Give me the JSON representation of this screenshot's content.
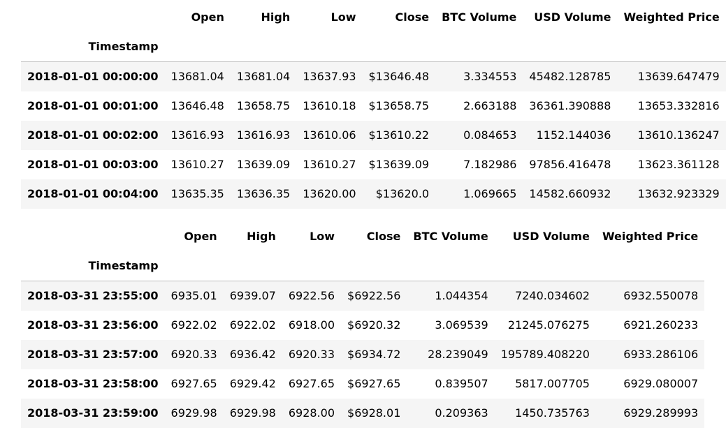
{
  "tables": [
    {
      "columns": [
        "Open",
        "High",
        "Low",
        "Close",
        "BTC Volume",
        "USD Volume",
        "Weighted Price"
      ],
      "index_name": "Timestamp",
      "rows": [
        {
          "index": "2018-01-01 00:00:00",
          "values": [
            "13681.04",
            "13681.04",
            "13637.93",
            "$13646.48",
            "3.334553",
            "45482.128785",
            "13639.647479"
          ]
        },
        {
          "index": "2018-01-01 00:01:00",
          "values": [
            "13646.48",
            "13658.75",
            "13610.18",
            "$13658.75",
            "2.663188",
            "36361.390888",
            "13653.332816"
          ]
        },
        {
          "index": "2018-01-01 00:02:00",
          "values": [
            "13616.93",
            "13616.93",
            "13610.06",
            "$13610.22",
            "0.084653",
            "1152.144036",
            "13610.136247"
          ]
        },
        {
          "index": "2018-01-01 00:03:00",
          "values": [
            "13610.27",
            "13639.09",
            "13610.27",
            "$13639.09",
            "7.182986",
            "97856.416478",
            "13623.361128"
          ]
        },
        {
          "index": "2018-01-01 00:04:00",
          "values": [
            "13635.35",
            "13636.35",
            "13620.00",
            "$13620.0",
            "1.069665",
            "14582.660932",
            "13632.923329"
          ]
        }
      ]
    },
    {
      "columns": [
        "Open",
        "High",
        "Low",
        "Close",
        "BTC Volume",
        "USD Volume",
        "Weighted Price"
      ],
      "index_name": "Timestamp",
      "rows": [
        {
          "index": "2018-03-31 23:55:00",
          "values": [
            "6935.01",
            "6939.07",
            "6922.56",
            "$6922.56",
            "1.044354",
            "7240.034602",
            "6932.550078"
          ]
        },
        {
          "index": "2018-03-31 23:56:00",
          "values": [
            "6922.02",
            "6922.02",
            "6918.00",
            "$6920.32",
            "3.069539",
            "21245.076275",
            "6921.260233"
          ]
        },
        {
          "index": "2018-03-31 23:57:00",
          "values": [
            "6920.33",
            "6936.42",
            "6920.33",
            "$6934.72",
            "28.239049",
            "195789.408220",
            "6933.286106"
          ]
        },
        {
          "index": "2018-03-31 23:58:00",
          "values": [
            "6927.65",
            "6929.42",
            "6927.65",
            "$6927.65",
            "0.839507",
            "5817.007705",
            "6929.080007"
          ]
        },
        {
          "index": "2018-03-31 23:59:00",
          "values": [
            "6929.98",
            "6929.98",
            "6928.00",
            "$6928.01",
            "0.209363",
            "1450.735763",
            "6929.289993"
          ]
        }
      ]
    }
  ]
}
